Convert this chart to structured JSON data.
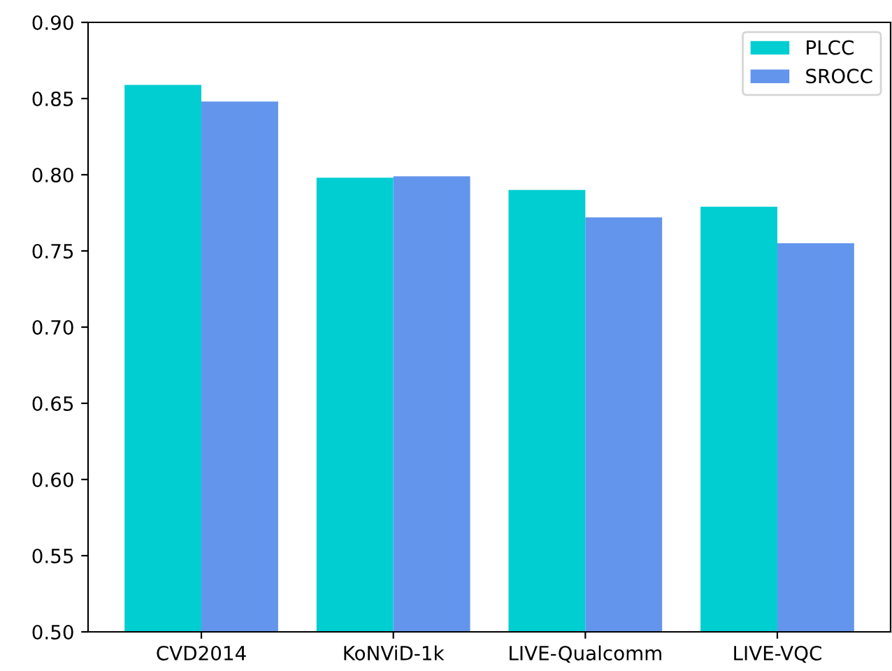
{
  "chart_data": {
    "type": "bar",
    "categories": [
      "CVD2014",
      "KoNViD-1k",
      "LIVE-Qualcomm",
      "LIVE-VQC"
    ],
    "series": [
      {
        "name": "PLCC",
        "color": "#00ced1",
        "values": [
          0.859,
          0.798,
          0.79,
          0.779
        ]
      },
      {
        "name": "SROCC",
        "color": "#6495ed",
        "values": [
          0.848,
          0.799,
          0.772,
          0.755
        ]
      }
    ],
    "ylim": [
      0.5,
      0.9
    ],
    "yticks": [
      {
        "value": 0.5,
        "label": "0.50"
      },
      {
        "value": 0.55,
        "label": "0.55"
      },
      {
        "value": 0.6,
        "label": "0.60"
      },
      {
        "value": 0.65,
        "label": "0.65"
      },
      {
        "value": 0.7,
        "label": "0.70"
      },
      {
        "value": 0.75,
        "label": "0.75"
      },
      {
        "value": 0.8,
        "label": "0.80"
      },
      {
        "value": 0.85,
        "label": "0.85"
      },
      {
        "value": 0.9,
        "label": "0.90"
      }
    ],
    "legend": "top right"
  }
}
